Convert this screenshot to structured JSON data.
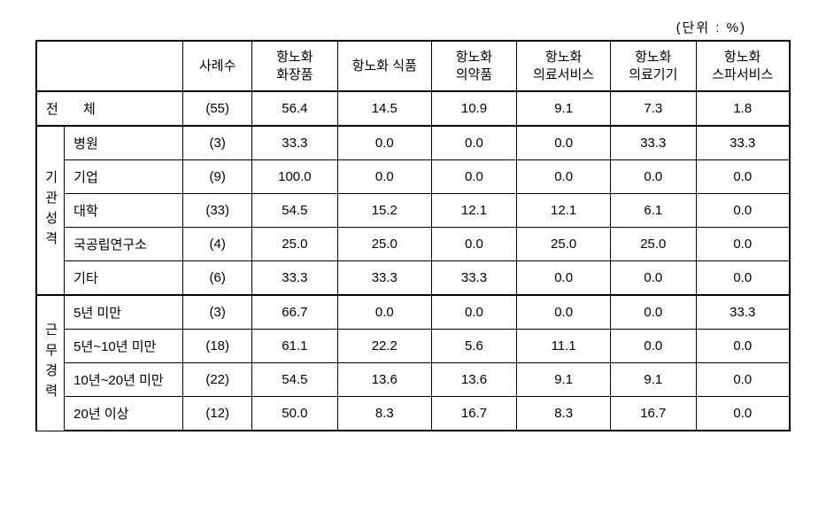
{
  "unit_label": "(단위 : %)",
  "table": {
    "headers": {
      "col_cases": "사례수",
      "col_cosmetics": "항노화\n화장품",
      "col_food": "항노화 식품",
      "col_medicine": "항노화\n의약품",
      "col_medservice": "항노화\n의료서비스",
      "col_meddevice": "항노화\n의료기기",
      "col_spa": "항노화\n스파서비스"
    },
    "total": {
      "label": "전 체",
      "cases": "(55)",
      "cosmetics": "56.4",
      "food": "14.5",
      "medicine": "10.9",
      "medservice": "9.1",
      "meddevice": "7.3",
      "spa": "1.8"
    },
    "section1": {
      "title": "기관성격",
      "rows": [
        {
          "label": "병원",
          "cases": "(3)",
          "cosmetics": "33.3",
          "food": "0.0",
          "medicine": "0.0",
          "medservice": "0.0",
          "meddevice": "33.3",
          "spa": "33.3"
        },
        {
          "label": "기업",
          "cases": "(9)",
          "cosmetics": "100.0",
          "food": "0.0",
          "medicine": "0.0",
          "medservice": "0.0",
          "meddevice": "0.0",
          "spa": "0.0"
        },
        {
          "label": "대학",
          "cases": "(33)",
          "cosmetics": "54.5",
          "food": "15.2",
          "medicine": "12.1",
          "medservice": "12.1",
          "meddevice": "6.1",
          "spa": "0.0"
        },
        {
          "label": "국공립연구소",
          "cases": "(4)",
          "cosmetics": "25.0",
          "food": "25.0",
          "medicine": "0.0",
          "medservice": "25.0",
          "meddevice": "25.0",
          "spa": "0.0"
        },
        {
          "label": "기타",
          "cases": "(6)",
          "cosmetics": "33.3",
          "food": "33.3",
          "medicine": "33.3",
          "medservice": "0.0",
          "meddevice": "0.0",
          "spa": "0.0"
        }
      ]
    },
    "section2": {
      "title": "근무경력",
      "rows": [
        {
          "label": "5년 미만",
          "cases": "(3)",
          "cosmetics": "66.7",
          "food": "0.0",
          "medicine": "0.0",
          "medservice": "0.0",
          "meddevice": "0.0",
          "spa": "33.3"
        },
        {
          "label": "5년~10년 미만",
          "cases": "(18)",
          "cosmetics": "61.1",
          "food": "22.2",
          "medicine": "5.6",
          "medservice": "11.1",
          "meddevice": "0.0",
          "spa": "0.0"
        },
        {
          "label": "10년~20년 미만",
          "cases": "(22)",
          "cosmetics": "54.5",
          "food": "13.6",
          "medicine": "13.6",
          "medservice": "9.1",
          "meddevice": "9.1",
          "spa": "0.0"
        },
        {
          "label": "20년 이상",
          "cases": "(12)",
          "cosmetics": "50.0",
          "food": "8.3",
          "medicine": "16.7",
          "medservice": "8.3",
          "meddevice": "16.7",
          "spa": "0.0"
        }
      ]
    }
  },
  "colors": {
    "background": "#ffffff",
    "border": "#000000",
    "text": "#000000"
  },
  "typography": {
    "body_fontsize": 15,
    "unit_fontsize": 15
  }
}
